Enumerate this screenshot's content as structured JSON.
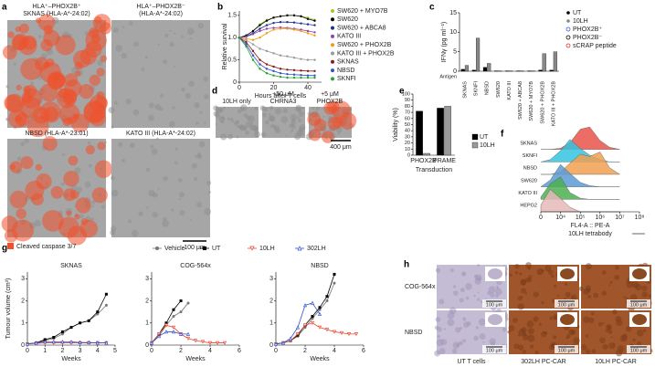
{
  "images": {
    "a": {
      "panel": "a",
      "titles": [
        "HLA⁺–PHOX2B⁺",
        "SKNAS (HLA-A*-24:02)",
        "HLA⁺–PHOX2B⁻",
        "(HLA-A*-24:02)",
        "NBSD (HLA-A*-23:01)",
        "KATO III (HLA-A*-24:02)"
      ],
      "legend": "Cleaved caspase 3/7",
      "scale_bar": "100 μm"
    },
    "d": {
      "panel": "d",
      "titles": [
        "10LH only",
        "+50 μM",
        "CHRNA3",
        "+5 μM",
        "PHOX2B"
      ],
      "scale_bar": "400 μm"
    },
    "h": {
      "panel": "h",
      "rows": [
        "COG-564x",
        "NBSD"
      ],
      "columns": [
        "UT T cells",
        "302LH PC-CAR",
        "10LH PC-CAR"
      ],
      "scale_bar": "100 μm"
    }
  },
  "chart_data": [
    {
      "type": "line",
      "panel": "b",
      "ylabel": "Relative survival",
      "xlabel": "Hours after T cells",
      "x": [
        0,
        4,
        8,
        12,
        16,
        20,
        24,
        28,
        32,
        36,
        40,
        44
      ],
      "xlim": [
        0,
        48
      ],
      "xticks": [
        0,
        20,
        40
      ],
      "ylim": [
        0,
        1.6
      ],
      "yticks": [
        0,
        0.5,
        {
          "value": 1,
          "label": "1.0"
        },
        1.5
      ],
      "series": [
        {
          "name": "SW620 + MYO7B",
          "color": "#a4c639",
          "values": [
            1,
            1.05,
            1.15,
            1.3,
            1.4,
            1.45,
            1.48,
            1.5,
            1.5,
            1.48,
            1.45,
            1.4
          ]
        },
        {
          "name": "SW620",
          "color": "#000000",
          "values": [
            1,
            1.05,
            1.15,
            1.28,
            1.38,
            1.45,
            1.48,
            1.5,
            1.5,
            1.48,
            1.42,
            1.38
          ]
        },
        {
          "name": "SW620 + ABCA8",
          "color": "#1f2f8f",
          "values": [
            1,
            1.03,
            1.1,
            1.2,
            1.28,
            1.33,
            1.35,
            1.35,
            1.34,
            1.32,
            1.3,
            1.28
          ]
        },
        {
          "name": "KATO III",
          "color": "#8e44ad",
          "values": [
            1,
            1.02,
            1.08,
            1.15,
            1.2,
            1.22,
            1.23,
            1.22,
            1.2,
            1.18,
            1.15,
            1.12
          ]
        },
        {
          "name": "SW620 + PHOX2B",
          "color": "#f39c12",
          "values": [
            1,
            0.98,
            0.95,
            1.0,
            1.1,
            1.18,
            1.2,
            1.2,
            1.18,
            1.15,
            1.1,
            1.05
          ]
        },
        {
          "name": "KATO III + PHOX2B",
          "color": "#999999",
          "values": [
            1,
            0.95,
            0.85,
            0.75,
            0.7,
            0.65,
            0.6,
            0.58,
            0.55,
            0.52,
            0.5,
            0.5
          ]
        },
        {
          "name": "SKNAS",
          "color": "#8b1a1a",
          "values": [
            1,
            0.9,
            0.7,
            0.5,
            0.4,
            0.35,
            0.3,
            0.28,
            0.27,
            0.26,
            0.25,
            0.25
          ]
        },
        {
          "name": "NBSD",
          "color": "#3050d0",
          "values": [
            1,
            0.85,
            0.6,
            0.4,
            0.3,
            0.25,
            0.2,
            0.18,
            0.17,
            0.16,
            0.15,
            0.15
          ]
        },
        {
          "name": "SKNFI",
          "color": "#2ca02c",
          "values": [
            1,
            0.8,
            0.5,
            0.3,
            0.2,
            0.15,
            0.12,
            0.1,
            0.1,
            0.1,
            0.1,
            0.1
          ]
        }
      ]
    },
    {
      "type": "grouped_bar",
      "panel": "c",
      "ylabel": "IFNγ (pg ml⁻¹)",
      "antigen_label": "Antigen",
      "categories": [
        "SKNAS",
        "SKNFI",
        "NBSD",
        "SW620",
        "KATO III",
        "SW620 + ABCA8",
        "SW620 + MYO7B",
        "SW620 + PHOX2B",
        "KATO III + PHOX2B"
      ],
      "ylim": [
        0,
        15
      ],
      "yticks": [
        0,
        5,
        10,
        15
      ],
      "series": [
        {
          "name": "UT",
          "color": "#000000",
          "values": [
            0.5,
            0.3,
            1,
            0.1,
            0.1,
            0.1,
            0.1,
            0.3,
            0.3
          ]
        },
        {
          "name": "10LH",
          "color": "#888888",
          "values": [
            1.5,
            8.5,
            2,
            0.1,
            0.1,
            0.1,
            0.1,
            4.5,
            5
          ]
        }
      ],
      "legend_extra": [
        {
          "label": "PHOX2B⁺",
          "color": "#3b5bdb"
        },
        {
          "label": "PHOX2B⁻",
          "color": "#000000"
        },
        {
          "label": "sCRAP peptide",
          "color": "#e03131"
        }
      ]
    },
    {
      "type": "grouped_bar",
      "panel": "e",
      "ylabel": "Viability (%)",
      "xlabel": "Transduction",
      "categories": [
        "PHOX2B",
        "PRAME"
      ],
      "ylim": [
        0,
        100
      ],
      "yticks": [
        0,
        10,
        20,
        30,
        40,
        50,
        60,
        70,
        80,
        90,
        100
      ],
      "series": [
        {
          "name": "UT",
          "color": "#000000",
          "values": [
            72,
            77
          ]
        },
        {
          "name": "10LH",
          "color": "#999999",
          "values": [
            3,
            80
          ]
        }
      ]
    },
    {
      "type": "ridgeline",
      "panel": "f",
      "xlabel": "FL4-A :: PE-A",
      "axis_label": "10LH tetrabody",
      "x": [
        0,
        3000,
        10000,
        30000,
        100000,
        300000,
        1000000,
        3000000,
        10000000
      ],
      "xlim": [
        0,
        100000000
      ],
      "xticks": [
        0,
        {
          "value": 10000,
          "label": "10⁴"
        },
        {
          "value": 100000,
          "label": "10⁵"
        },
        {
          "value": 1000000,
          "label": "10⁶"
        },
        {
          "value": 10000000,
          "label": "10⁷"
        },
        {
          "value": 100000000,
          "label": "10⁸"
        }
      ],
      "series": [
        {
          "name": "SKNAS",
          "color": "#e8534a",
          "values": [
            0,
            0,
            0.05,
            0.3,
            0.9,
            1,
            0.4,
            0.1,
            0
          ]
        },
        {
          "name": "SKNFI",
          "color": "#35c3e0",
          "values": [
            0,
            0.1,
            0.5,
            1,
            0.6,
            0.3,
            0.1,
            0,
            0
          ]
        },
        {
          "name": "NBSD",
          "color": "#f0a050",
          "values": [
            0,
            0,
            0.1,
            0.5,
            0.9,
            0.8,
            1,
            0.3,
            0
          ]
        },
        {
          "name": "SW620",
          "color": "#5b9bd5",
          "values": [
            0,
            0.3,
            1,
            0.6,
            0.2,
            0.05,
            0,
            0,
            0
          ]
        },
        {
          "name": "KATO III",
          "color": "#4caf50",
          "values": [
            0.1,
            0.7,
            1,
            0.3,
            0.05,
            0,
            0,
            0,
            0
          ]
        },
        {
          "name": "HEPG2",
          "color": "#e6b8b8",
          "values": [
            0.3,
            1,
            0.6,
            0.2,
            0,
            0,
            0,
            0,
            0
          ]
        }
      ]
    },
    {
      "type": "line_group",
      "panel": "g",
      "ylabel": "Tumour volume (cm³)",
      "xlabel": "Weeks",
      "ylim": [
        0,
        3.3
      ],
      "yticks": [
        0,
        1,
        2,
        3
      ],
      "series": [
        {
          "name": "Vehicle",
          "color": "#777777",
          "marker": "circle"
        },
        {
          "name": "UT",
          "color": "#000000",
          "marker": "square"
        },
        {
          "name": "10LH",
          "color": "#e8442f",
          "marker": "triangle-down"
        },
        {
          "name": "302LH",
          "color": "#3050d0",
          "marker": "triangle"
        }
      ],
      "charts": [
        {
          "title": "SKNAS",
          "x": [
            0,
            0.5,
            1,
            1.5,
            2,
            2.5,
            3,
            3.5,
            4,
            4.5
          ],
          "xlim": [
            0,
            5
          ],
          "xticks": [
            0,
            1,
            2,
            3,
            4,
            5
          ],
          "values": [
            [
              0.05,
              0.1,
              0.2,
              0.3,
              0.5,
              0.8,
              1.0,
              1.1,
              1.4,
              1.8
            ],
            [
              0.05,
              0.1,
              0.25,
              0.35,
              0.6,
              0.8,
              1.0,
              1.1,
              1.5,
              2.3
            ],
            [
              0.05,
              0.08,
              0.1,
              0.1,
              0.1,
              0.1,
              0.1,
              0.1,
              0.1,
              0.1
            ],
            [
              0.05,
              0.1,
              0.15,
              0.15,
              0.15,
              0.15,
              0.12,
              0.12,
              0.1,
              0.1
            ]
          ]
        },
        {
          "title": "COG-564x",
          "x": [
            0,
            0.5,
            1,
            1.5,
            2,
            2.5,
            3,
            3.5,
            4,
            4.5,
            5
          ],
          "xlim": [
            0,
            6
          ],
          "xticks": [
            0,
            2,
            4,
            6
          ],
          "values": [
            [
              0.1,
              0.4,
              0.9,
              1.3,
              1.5,
              1.9,
              null,
              null,
              null,
              null,
              null
            ],
            [
              0.1,
              0.5,
              1.0,
              1.6,
              2.0,
              null,
              null,
              null,
              null,
              null,
              null
            ],
            [
              0.1,
              0.5,
              0.9,
              0.8,
              0.5,
              0.3,
              0.2,
              0.15,
              0.1,
              0.1,
              0.1
            ],
            [
              0.1,
              0.4,
              0.6,
              0.6,
              0.5,
              0.5,
              null,
              null,
              null,
              null,
              null
            ]
          ]
        },
        {
          "title": "NBSD",
          "x": [
            0,
            0.5,
            1,
            1.5,
            2,
            2.5,
            3,
            3.5,
            4,
            4.5,
            5,
            5.5
          ],
          "xlim": [
            0,
            6
          ],
          "xticks": [
            0,
            2,
            4,
            6
          ],
          "values": [
            [
              0.05,
              0.1,
              0.2,
              0.4,
              0.8,
              1.2,
              1.6,
              2.0,
              2.8,
              null,
              null,
              null
            ],
            [
              0.05,
              0.1,
              0.2,
              0.45,
              0.9,
              1.3,
              1.7,
              2.2,
              3.2,
              null,
              null,
              null
            ],
            [
              0.05,
              0.1,
              0.2,
              0.5,
              0.9,
              1.0,
              0.8,
              0.7,
              0.6,
              0.55,
              0.5,
              0.5
            ],
            [
              0.05,
              0.1,
              0.3,
              0.8,
              1.8,
              1.9,
              1.4,
              null,
              null,
              null,
              null,
              null
            ]
          ]
        }
      ]
    }
  ]
}
